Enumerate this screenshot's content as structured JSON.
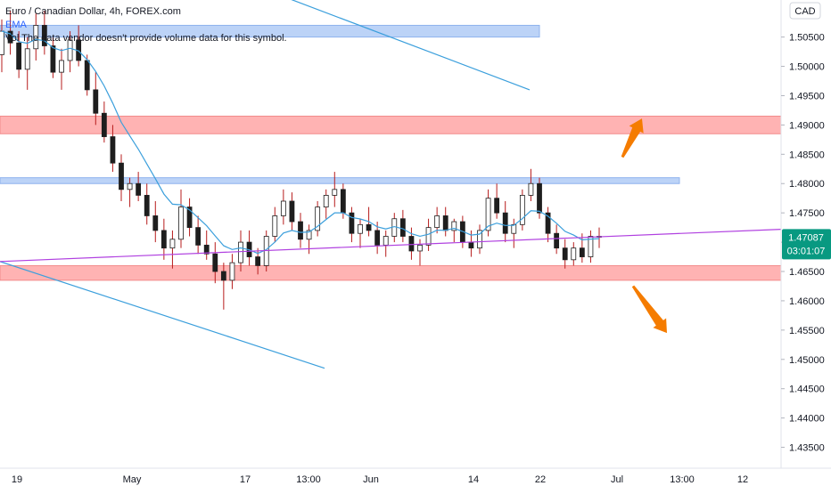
{
  "legend": {
    "symbol": "Euro / Canadian Dollar, 4h, FOREX.com",
    "ema": "EMA",
    "vol": "Vol The data vendor doesn't provide volume data for this symbol."
  },
  "currency_badge": "CAD",
  "last_price_label": "1.47087",
  "countdown_label": "03:01:07",
  "colors": {
    "up": "#26a69a",
    "down": "#ef5350",
    "candle_body": "#1e1e1e",
    "wick": "#b71c1c",
    "ema": "#3b9fdc",
    "trendline": "#3b9fdc",
    "purple_line": "#b040e0",
    "support_zone": "#ffb3b3",
    "resist_zone_blue": "#bcd3f7",
    "arrow": "#f57c00",
    "price_badge": "#089981"
  },
  "chart_data": {
    "type": "candlestick",
    "title": "Euro / Canadian Dollar, 4h, FOREX.com",
    "ylabel": "CAD",
    "ylim": [
      1.4325,
      1.5095
    ],
    "y_ticks": [
      "1.50500",
      "1.50000",
      "1.49500",
      "1.49000",
      "1.48500",
      "1.48000",
      "1.47500",
      "1.47000",
      "1.46500",
      "1.46000",
      "1.45500",
      "1.45000",
      "1.44500",
      "1.44000",
      "1.43500"
    ],
    "x_ticks": [
      "19",
      "May",
      "17",
      "13:00",
      "Jun",
      "14",
      "22",
      "Jul",
      "13:00",
      "12"
    ],
    "last_price": 1.47087,
    "zones": [
      {
        "color": "blue",
        "from": 1.505,
        "to": 1.507,
        "x_end_label": "Jun 22"
      },
      {
        "color": "red",
        "from": 1.4885,
        "to": 1.4915
      },
      {
        "color": "blue",
        "from": 1.48,
        "to": 1.481
      },
      {
        "color": "red",
        "from": 1.4635,
        "to": 1.466
      }
    ],
    "trendlines": [
      {
        "from": [
          "Apr 28",
          1.5115
        ],
        "to": [
          "Jun 22",
          1.496
        ]
      },
      {
        "from": [
          "Apr 19",
          1.4667
        ],
        "to": [
          "May 19",
          1.4485
        ]
      },
      {
        "from": [
          "Apr 19",
          1.4667
        ],
        "to": [
          "Jul 15",
          1.4722
        ],
        "color": "purple"
      }
    ],
    "arrows": [
      {
        "direction": "up",
        "from": 1.4845,
        "to": 1.4905
      },
      {
        "direction": "down",
        "from": 1.4625,
        "to": 1.4545
      }
    ],
    "price_path": [
      [
        1.502,
        1.508,
        1.499,
        1.506
      ],
      [
        1.506,
        1.5095,
        1.502,
        1.504
      ],
      [
        1.504,
        1.506,
        1.498,
        1.4995
      ],
      [
        1.4995,
        1.505,
        1.496,
        1.503
      ],
      [
        1.503,
        1.509,
        1.501,
        1.507
      ],
      [
        1.507,
        1.5095,
        1.502,
        1.5035
      ],
      [
        1.5035,
        1.505,
        1.498,
        1.499
      ],
      [
        1.499,
        1.503,
        1.496,
        1.501
      ],
      [
        1.501,
        1.506,
        1.499,
        1.5045
      ],
      [
        1.5045,
        1.507,
        1.5,
        1.501
      ],
      [
        1.501,
        1.502,
        1.495,
        1.496
      ],
      [
        1.496,
        1.499,
        1.49,
        1.492
      ],
      [
        1.492,
        1.494,
        1.487,
        1.488
      ],
      [
        1.488,
        1.49,
        1.482,
        1.4835
      ],
      [
        1.4835,
        1.485,
        1.477,
        1.479
      ],
      [
        1.479,
        1.481,
        1.476,
        1.48
      ],
      [
        1.48,
        1.482,
        1.477,
        1.478
      ],
      [
        1.478,
        1.48,
        1.473,
        1.4745
      ],
      [
        1.4745,
        1.477,
        1.47,
        1.472
      ],
      [
        1.472,
        1.474,
        1.467,
        1.469
      ],
      [
        1.469,
        1.472,
        1.4655,
        1.4705
      ],
      [
        1.4705,
        1.479,
        1.469,
        1.476
      ],
      [
        1.476,
        1.4775,
        1.471,
        1.4725
      ],
      [
        1.4725,
        1.4745,
        1.468,
        1.4695
      ],
      [
        1.4695,
        1.472,
        1.467,
        1.468
      ],
      [
        1.468,
        1.47,
        1.463,
        1.465
      ],
      [
        1.465,
        1.4665,
        1.4585,
        1.4635
      ],
      [
        1.4635,
        1.468,
        1.462,
        1.4665
      ],
      [
        1.4665,
        1.472,
        1.465,
        1.47
      ],
      [
        1.47,
        1.472,
        1.466,
        1.4675
      ],
      [
        1.4675,
        1.469,
        1.4645,
        1.466
      ],
      [
        1.466,
        1.472,
        1.465,
        1.471
      ],
      [
        1.471,
        1.476,
        1.47,
        1.4745
      ],
      [
        1.4745,
        1.479,
        1.473,
        1.477
      ],
      [
        1.477,
        1.4785,
        1.472,
        1.4735
      ],
      [
        1.4735,
        1.475,
        1.469,
        1.4705
      ],
      [
        1.4705,
        1.473,
        1.468,
        1.472
      ],
      [
        1.472,
        1.477,
        1.471,
        1.476
      ],
      [
        1.476,
        1.479,
        1.474,
        1.478
      ],
      [
        1.478,
        1.482,
        1.476,
        1.479
      ],
      [
        1.479,
        1.48,
        1.474,
        1.475
      ],
      [
        1.475,
        1.476,
        1.47,
        1.4715
      ],
      [
        1.4715,
        1.474,
        1.469,
        1.473
      ],
      [
        1.473,
        1.476,
        1.471,
        1.472
      ],
      [
        1.472,
        1.4735,
        1.468,
        1.4695
      ],
      [
        1.4695,
        1.472,
        1.4675,
        1.471
      ],
      [
        1.471,
        1.475,
        1.47,
        1.474
      ],
      [
        1.474,
        1.4755,
        1.47,
        1.471
      ],
      [
        1.471,
        1.4725,
        1.467,
        1.4685
      ],
      [
        1.4685,
        1.4705,
        1.466,
        1.4695
      ],
      [
        1.4695,
        1.474,
        1.4685,
        1.4725
      ],
      [
        1.4725,
        1.476,
        1.4715,
        1.4745
      ],
      [
        1.4745,
        1.476,
        1.471,
        1.472
      ],
      [
        1.472,
        1.474,
        1.47,
        1.4735
      ],
      [
        1.4735,
        1.4745,
        1.469,
        1.47
      ],
      [
        1.47,
        1.472,
        1.4675,
        1.469
      ],
      [
        1.469,
        1.473,
        1.468,
        1.472
      ],
      [
        1.472,
        1.479,
        1.471,
        1.4775
      ],
      [
        1.4775,
        1.48,
        1.474,
        1.475
      ],
      [
        1.475,
        1.477,
        1.47,
        1.4715
      ],
      [
        1.4715,
        1.474,
        1.469,
        1.473
      ],
      [
        1.473,
        1.479,
        1.472,
        1.478
      ],
      [
        1.478,
        1.4825,
        1.477,
        1.48
      ],
      [
        1.48,
        1.481,
        1.474,
        1.475
      ],
      [
        1.475,
        1.476,
        1.47,
        1.4715
      ],
      [
        1.4715,
        1.473,
        1.468,
        1.469
      ],
      [
        1.469,
        1.4705,
        1.4655,
        1.467
      ],
      [
        1.467,
        1.47,
        1.466,
        1.469
      ],
      [
        1.469,
        1.4715,
        1.4665,
        1.4675
      ],
      [
        1.4675,
        1.472,
        1.4665,
        1.471
      ],
      [
        1.471,
        1.4725,
        1.469,
        1.4709
      ]
    ]
  }
}
